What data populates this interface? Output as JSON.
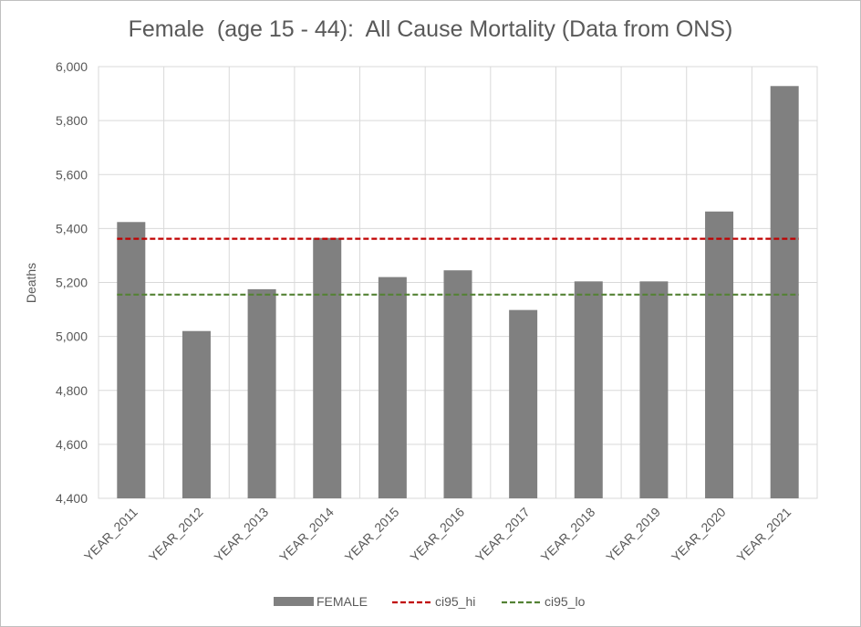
{
  "chart_data": {
    "type": "bar",
    "title": "Female  (age 15 - 44):  All Cause Mortality (Data from ONS)",
    "xlabel": "",
    "ylabel": "Deaths",
    "categories": [
      "YEAR_2011",
      "YEAR_2012",
      "YEAR_2013",
      "YEAR_2014",
      "YEAR_2015",
      "YEAR_2016",
      "YEAR_2017",
      "YEAR_2018",
      "YEAR_2019",
      "YEAR_2020",
      "YEAR_2021"
    ],
    "series": [
      {
        "name": "FEMALE",
        "type": "bar",
        "color": "#808080",
        "values": [
          5424,
          5020,
          5175,
          5365,
          5220,
          5245,
          5098,
          5204,
          5204,
          5463,
          5928
        ]
      },
      {
        "name": "ci95_hi",
        "type": "line",
        "style": "dashed",
        "color": "#c00000",
        "values": [
          5362,
          5362,
          5362,
          5362,
          5362,
          5362,
          5362,
          5362,
          5362,
          5362,
          5362
        ]
      },
      {
        "name": "ci95_lo",
        "type": "line",
        "style": "dashed",
        "color": "#548235",
        "values": [
          5155,
          5155,
          5155,
          5155,
          5155,
          5155,
          5155,
          5155,
          5155,
          5155,
          5155
        ]
      }
    ],
    "ylim": [
      4400,
      6000
    ],
    "yticks": [
      "4,400",
      "4,600",
      "4,800",
      "5,000",
      "5,200",
      "5,400",
      "5,600",
      "5,800",
      "6,000"
    ],
    "grid": true,
    "legend": "bottom"
  }
}
